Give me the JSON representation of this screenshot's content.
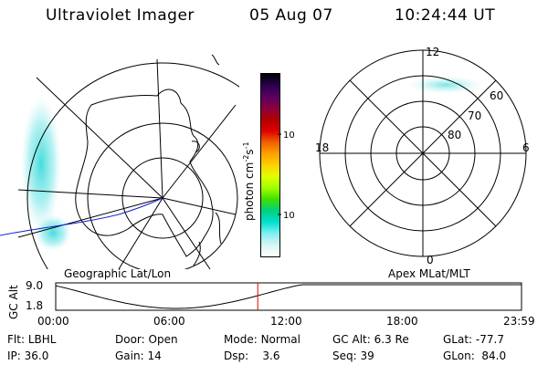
{
  "header": {
    "title": "Ultraviolet Imager",
    "date": "05 Aug 07",
    "time": "10:24:44 UT"
  },
  "left_panel": {
    "caption": "Geographic Lat/Lon"
  },
  "right_panel": {
    "caption": "Apex MLat/MLT",
    "mlt_labels": [
      "12",
      "18",
      "6",
      "0"
    ],
    "mlat_labels": [
      "60",
      "70",
      "80"
    ]
  },
  "colorbar": {
    "label": "photon cm",
    "label_sup1": "-2",
    "label_mid": "s",
    "label_sup2": "-1",
    "ticks": [
      "100",
      "10"
    ],
    "colors": [
      "#000000",
      "#2a004f",
      "#5a0060",
      "#8a0040",
      "#b00000",
      "#e00000",
      "#f06000",
      "#ffa000",
      "#ffd000",
      "#e0ff00",
      "#a0ff00",
      "#40e000",
      "#00d080",
      "#00e0d0",
      "#80f0f0",
      "#d8f4f4",
      "#ffffff"
    ]
  },
  "altitude_plot": {
    "axis_label": "GC Alt",
    "y_top": "9.0",
    "y_bottom": "1.8",
    "x_ticks": [
      "00:00",
      "06:00",
      "12:00",
      "18:00",
      "23:59"
    ],
    "current_time_hours": 10.41
  },
  "status": {
    "filter_label": "Flt:",
    "filter_value": "LBHL",
    "ip_label": "IP:",
    "ip_value": "36.0",
    "door_label": "Door:",
    "door_value": "Open",
    "gain_label": "Gain:",
    "gain_value": "14",
    "mode_label": "Mode:",
    "mode_value": "Normal",
    "dsp_label": "Dsp:",
    "dsp_value": "3.6",
    "gcalt_label": "GC Alt:",
    "gcalt_value": "6.3 Re",
    "seq_label": "Seq:",
    "seq_value": "39",
    "glat_label": "GLat:",
    "glat_value": "-77.7",
    "glon_label": "GLon:",
    "glon_value": "84.0"
  }
}
